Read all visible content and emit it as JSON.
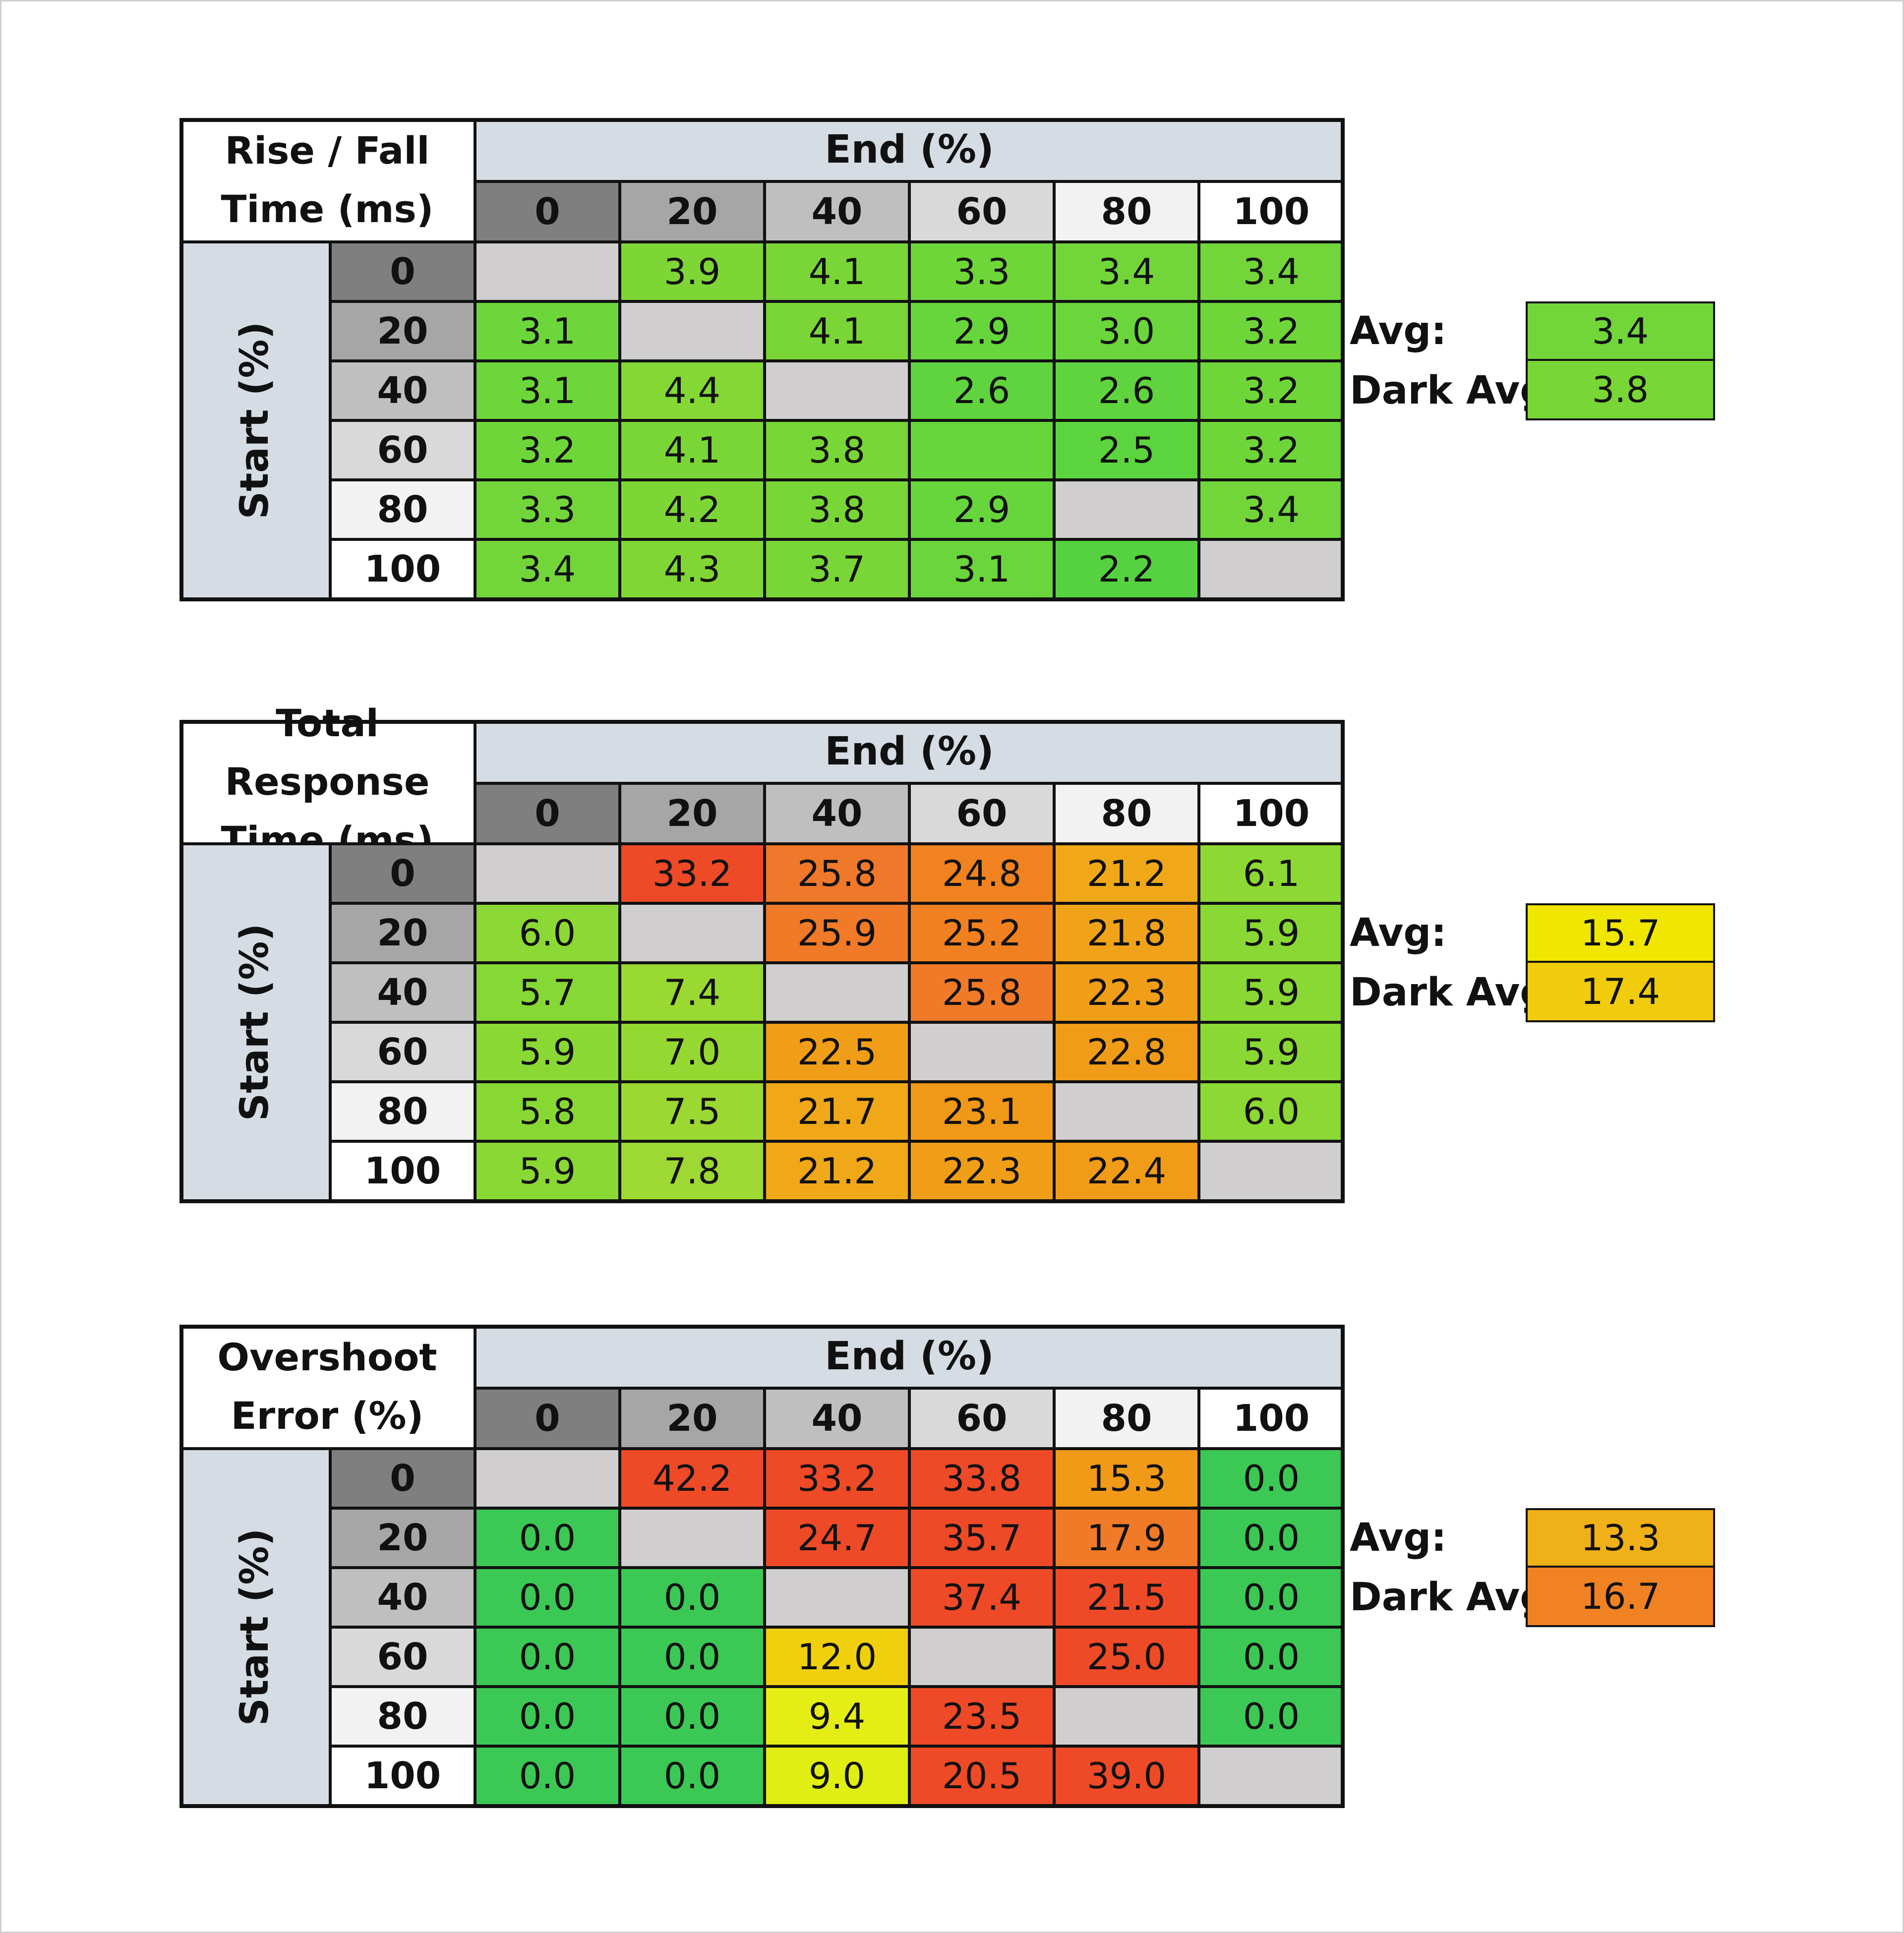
{
  "chart_data": [
    {
      "type": "table",
      "title_lines": [
        "Rise / Fall",
        "Time (ms)"
      ],
      "column_header": "End (%)",
      "row_header": "Start (%)",
      "levels": [
        "0",
        "20",
        "40",
        "60",
        "80",
        "100"
      ],
      "rows": [
        [
          "",
          "3.9",
          "4.1",
          "3.3",
          "3.4",
          "3.4"
        ],
        [
          "3.1",
          "",
          "4.1",
          "2.9",
          "3.0",
          "3.2"
        ],
        [
          "3.1",
          "4.4",
          "",
          "2.6",
          "2.6",
          "3.2"
        ],
        [
          "3.2",
          "4.1",
          "3.8",
          "",
          "2.5",
          "3.2"
        ],
        [
          "3.3",
          "4.2",
          "3.8",
          "2.9",
          "",
          "3.4"
        ],
        [
          "3.4",
          "4.3",
          "3.7",
          "3.1",
          "2.2",
          ""
        ]
      ],
      "colors": [
        [
          "#d0cece",
          "#7ed636",
          "#7ad636",
          "#6fd63a",
          "#72d63a",
          "#72d63a"
        ],
        [
          "#6cd63a",
          "#d0cece",
          "#7ad636",
          "#66d63c",
          "#6ad63c",
          "#6fd63a"
        ],
        [
          "#6cd63a",
          "#84d834",
          "#d0cece",
          "#5fd43e",
          "#5fd43e",
          "#6fd63a"
        ],
        [
          "#6fd63a",
          "#7ad636",
          "#78d636",
          "#66d63c",
          "#5cd43e",
          "#6fd63a"
        ],
        [
          "#72d63a",
          "#7ed636",
          "#78d636",
          "#66d63c",
          "#d0cece",
          "#72d63a"
        ],
        [
          "#72d63a",
          "#80d634",
          "#78d636",
          "#6ad63c",
          "#56d240",
          "#d0cece"
        ]
      ],
      "summary": {
        "avg_label": "Avg:",
        "avg": "3.4",
        "avg_color": "#72d63a",
        "dark_label": "Dark Avg:",
        "dark_avg": "3.8",
        "dark_color": "#78d636"
      }
    },
    {
      "type": "table",
      "title_lines": [
        "Total Response",
        "Time (ms)"
      ],
      "column_header": "End (%)",
      "row_header": "Start (%)",
      "levels": [
        "0",
        "20",
        "40",
        "60",
        "80",
        "100"
      ],
      "rows": [
        [
          "",
          "33.2",
          "25.8",
          "24.8",
          "21.2",
          "6.1"
        ],
        [
          "6.0",
          "",
          "25.9",
          "25.2",
          "21.8",
          "5.9"
        ],
        [
          "5.7",
          "7.4",
          "",
          "25.8",
          "22.3",
          "5.9"
        ],
        [
          "5.9",
          "7.0",
          "22.5",
          "",
          "22.8",
          "5.9"
        ],
        [
          "5.8",
          "7.5",
          "21.7",
          "23.1",
          "",
          "6.0"
        ],
        [
          "5.9",
          "7.8",
          "21.2",
          "22.3",
          "22.4",
          ""
        ]
      ],
      "colors": [
        [
          "#d0cece",
          "#ee4a28",
          "#f0782a",
          "#f08220",
          "#f0a818",
          "#8ed834"
        ],
        [
          "#8cd834",
          "#d0cece",
          "#f07a28",
          "#f08020",
          "#f0a218",
          "#8ad834"
        ],
        [
          "#86d834",
          "#9ad832",
          "#d0cece",
          "#f07a28",
          "#f09e18",
          "#8ad834"
        ],
        [
          "#8ad834",
          "#96d832",
          "#f09e18",
          "#d0cece",
          "#f09c18",
          "#8ad834"
        ],
        [
          "#88d834",
          "#9cd832",
          "#f0a818",
          "#f09818",
          "#d0cece",
          "#8cd834"
        ],
        [
          "#8ad834",
          "#9ed832",
          "#f0a818",
          "#f09e18",
          "#f09c18",
          "#d0cece"
        ]
      ],
      "summary": {
        "avg_label": "Avg:",
        "avg": "15.7",
        "avg_color": "#f0e600",
        "dark_label": "Dark Avg:",
        "dark_avg": "17.4",
        "dark_color": "#f0cc0c"
      }
    },
    {
      "type": "table",
      "title_lines": [
        "Overshoot",
        "Error (%)"
      ],
      "column_header": "End (%)",
      "row_header": "Start (%)",
      "levels": [
        "0",
        "20",
        "40",
        "60",
        "80",
        "100"
      ],
      "rows": [
        [
          "",
          "42.2",
          "33.2",
          "33.8",
          "15.3",
          "0.0"
        ],
        [
          "0.0",
          "",
          "24.7",
          "35.7",
          "17.9",
          "0.0"
        ],
        [
          "0.0",
          "0.0",
          "",
          "37.4",
          "21.5",
          "0.0"
        ],
        [
          "0.0",
          "0.0",
          "12.0",
          "",
          "25.0",
          "0.0"
        ],
        [
          "0.0",
          "0.0",
          "9.4",
          "23.5",
          "",
          "0.0"
        ],
        [
          "0.0",
          "0.0",
          "9.0",
          "20.5",
          "39.0",
          ""
        ]
      ],
      "colors": [
        [
          "#d0cece",
          "#ee4a28",
          "#ee4a28",
          "#ee4a28",
          "#f09a18",
          "#3cc855"
        ],
        [
          "#3cc855",
          "#d0cece",
          "#ee4a28",
          "#ee4a28",
          "#f07a28",
          "#3cc855"
        ],
        [
          "#3cc855",
          "#3cc855",
          "#d0cece",
          "#ee4a28",
          "#ee4a28",
          "#3cc855"
        ],
        [
          "#3cc855",
          "#3cc855",
          "#f0d00c",
          "#d0cece",
          "#ee4a28",
          "#3cc855"
        ],
        [
          "#3cc855",
          "#3cc855",
          "#e4ee14",
          "#ee4a28",
          "#d0cece",
          "#3cc855"
        ],
        [
          "#3cc855",
          "#3cc855",
          "#e0ee14",
          "#ee4a28",
          "#ee4a28",
          "#d0cece"
        ]
      ],
      "summary": {
        "avg_label": "Avg:",
        "avg": "13.3",
        "avg_color": "#f0b018",
        "dark_label": "Dark Avg:",
        "dark_avg": "16.7",
        "dark_color": "#f08224"
      }
    }
  ]
}
